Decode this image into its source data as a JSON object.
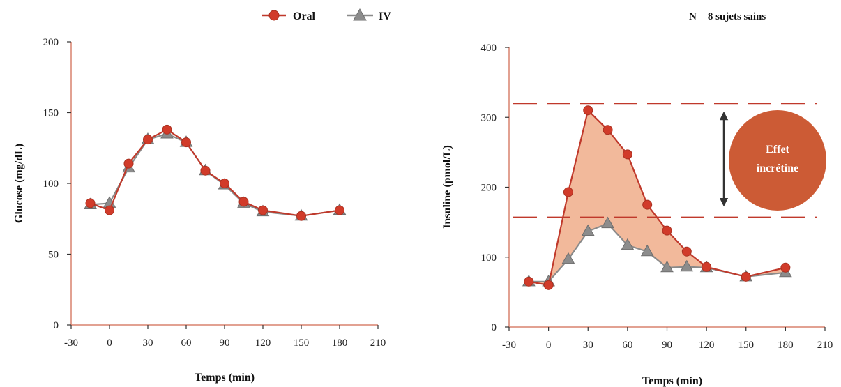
{
  "legend": {
    "entries": [
      {
        "name": "Oral",
        "marker": "circle"
      },
      {
        "name": "IV",
        "marker": "triangle"
      }
    ]
  },
  "note": "N = 8 sujets sains",
  "colors": {
    "oral": "#c0392b",
    "oral_marker": "#d13b2a",
    "iv": "#8a8a8a",
    "iv_marker": "#8c8c8c",
    "fill": "#f2b99b",
    "dash": "#c0392b",
    "axis_line": "#d9826e",
    "axis_tick": "#333333",
    "ellipse": "#cc5b35",
    "arrow": "#333333"
  },
  "annotation": {
    "line1": "Effet",
    "line2": "incrétine"
  },
  "chart_data": [
    {
      "type": "line",
      "xlabel": "Temps (min)",
      "ylabel": "Glucose (mg/dL)",
      "xlim": [
        -30,
        210
      ],
      "ylim": [
        0,
        200
      ],
      "xticks": [
        -30,
        0,
        30,
        60,
        90,
        120,
        150,
        180,
        210
      ],
      "yticks": [
        0,
        50,
        100,
        150,
        200
      ],
      "grid": false,
      "legend": "top-right",
      "series": [
        {
          "name": "Oral",
          "x": [
            -15,
            0,
            15,
            30,
            45,
            60,
            75,
            90,
            105,
            120,
            150,
            180
          ],
          "y": [
            86,
            81,
            114,
            131,
            138,
            129,
            109,
            100,
            87,
            81,
            77,
            81
          ]
        },
        {
          "name": "IV",
          "x": [
            -15,
            0,
            15,
            30,
            45,
            60,
            75,
            90,
            105,
            120,
            150,
            180
          ],
          "y": [
            85,
            86,
            111,
            131,
            135,
            129,
            109,
            99,
            86,
            80,
            77,
            81
          ]
        }
      ]
    },
    {
      "type": "line",
      "xlabel": "Temps (min)",
      "ylabel": "Insuline (pmol/L)",
      "xlim": [
        -30,
        210
      ],
      "ylim": [
        0,
        400
      ],
      "xticks": [
        -30,
        0,
        30,
        60,
        90,
        120,
        150,
        180,
        210
      ],
      "yticks": [
        0,
        100,
        200,
        300,
        400
      ],
      "grid": false,
      "reference_lines": [
        320,
        157
      ],
      "series": [
        {
          "name": "Oral",
          "x": [
            -15,
            0,
            15,
            30,
            45,
            60,
            75,
            90,
            105,
            120,
            150,
            180
          ],
          "y": [
            65,
            60,
            193,
            310,
            282,
            247,
            175,
            138,
            108,
            86,
            72,
            85
          ]
        },
        {
          "name": "IV",
          "x": [
            -15,
            0,
            15,
            30,
            45,
            60,
            75,
            90,
            105,
            120,
            150,
            180
          ],
          "y": [
            65,
            65,
            97,
            137,
            148,
            117,
            108,
            85,
            86,
            85,
            72,
            78
          ]
        }
      ]
    }
  ]
}
